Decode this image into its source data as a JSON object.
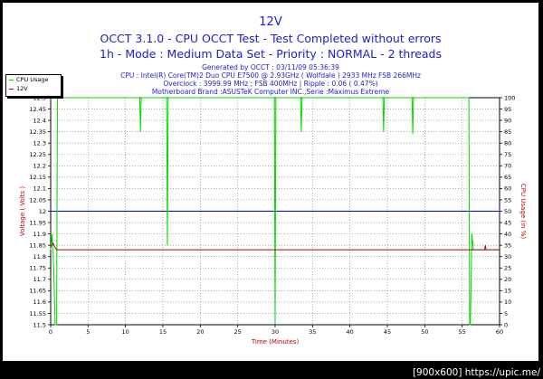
{
  "title": "12V",
  "subtitle1": "OCCT 3.1.0 - CPU OCCT Test - Test Completed without errors",
  "subtitle2": "1h - Mode : Medium Data Set - Priority : NORMAL - 2 threads",
  "info_lines": [
    "Generated by OCCT : 03/11/09 05:36:39",
    "CPU : Intel(R) Core(TM)2 Duo CPU E7500 @ 2.93GHz ( Wolfdale ) 2933 MHz FSB 266MHz",
    "Overclock : 3999.99 MHz ; FSB 400MHz | Ripple : 0.06 ( 0.47%)",
    "Motherboard Brand :ASUSTeK Computer INC.,Serie :Maximus Extreme"
  ],
  "watermark": "[900x600] https://upic.me/",
  "legend": [
    {
      "label": "CPU Usage",
      "color": "#00d800"
    },
    {
      "label": "12V",
      "color": "#b40000"
    }
  ],
  "chart_data": {
    "type": "line",
    "xlabel": "Time (Minutes)",
    "ylabel_left": "Voltage ( Volts )",
    "ylabel_right": "CPU Usage (in %)",
    "xlim": [
      0,
      60
    ],
    "ylim_left": [
      11.5,
      12.5
    ],
    "ylim_right": [
      0,
      100
    ],
    "x_ticks": [
      0,
      5,
      10,
      15,
      20,
      25,
      30,
      35,
      40,
      45,
      50,
      55,
      60
    ],
    "y_left_ticks": [
      "11.5",
      "11.55",
      "11.6",
      "11.65",
      "11.7",
      "11.75",
      "11.8",
      "11.85",
      "11.9",
      "11.95",
      "12",
      "12.05",
      "12.1",
      "12.15",
      "12.2",
      "12.25",
      "12.3",
      "12.35",
      "12.4",
      "12.45",
      "12.5"
    ],
    "y_right_ticks": [
      0,
      5,
      10,
      15,
      20,
      25,
      30,
      35,
      40,
      45,
      50,
      55,
      60,
      65,
      70,
      75,
      80,
      85,
      90,
      95,
      100
    ],
    "reference_line": {
      "axis": "left",
      "value": 12,
      "color": "#0000ff"
    },
    "series": [
      {
        "name": "CPU Usage",
        "axis": "right",
        "color": "#00d800",
        "points": [
          [
            0,
            33
          ],
          [
            0.2,
            40
          ],
          [
            0.4,
            25
          ],
          [
            0.6,
            0
          ],
          [
            0.8,
            0
          ],
          [
            0.9,
            100
          ],
          [
            11.9,
            100
          ],
          [
            12,
            85
          ],
          [
            12.1,
            100
          ],
          [
            15.5,
            100
          ],
          [
            15.6,
            35
          ],
          [
            15.7,
            100
          ],
          [
            29.9,
            100
          ],
          [
            30,
            0
          ],
          [
            30.1,
            100
          ],
          [
            33.4,
            100
          ],
          [
            33.5,
            85
          ],
          [
            33.6,
            100
          ],
          [
            44.4,
            100
          ],
          [
            44.5,
            85
          ],
          [
            44.6,
            100
          ],
          [
            48.3,
            100
          ],
          [
            48.4,
            84
          ],
          [
            48.5,
            100
          ],
          [
            55.9,
            100
          ],
          [
            56,
            0
          ],
          [
            56.1,
            0
          ],
          [
            56.3,
            40
          ],
          [
            56.5,
            33
          ],
          [
            60,
            33
          ]
        ]
      },
      {
        "name": "12V",
        "axis": "left",
        "color": "#b40000",
        "points": [
          [
            0,
            11.84
          ],
          [
            0.3,
            11.86
          ],
          [
            0.6,
            11.84
          ],
          [
            0.8,
            11.83
          ],
          [
            58,
            11.83
          ],
          [
            58.1,
            11.85
          ],
          [
            58.2,
            11.83
          ],
          [
            60,
            11.83
          ]
        ]
      }
    ]
  }
}
